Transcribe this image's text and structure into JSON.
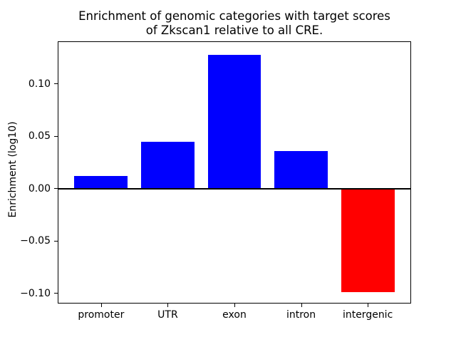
{
  "chart_data": {
    "type": "bar",
    "title": "Enrichment of genomic categories with target scores\nof Zkscan1 relative to all CRE.",
    "xlabel": "",
    "ylabel": "Enrichment (log10)",
    "categories": [
      "promoter",
      "UTR",
      "exon",
      "intron",
      "intergenic"
    ],
    "values": [
      0.012,
      0.045,
      0.128,
      0.036,
      -0.099
    ],
    "bar_colors": [
      "#0000FF",
      "#0000FF",
      "#0000FF",
      "#0000FF",
      "#FF0000"
    ],
    "positive_color": "#0000FF",
    "negative_color": "#FF0000",
    "frame_color": "#000000",
    "zero_line": true,
    "grid": false,
    "legend": null,
    "bar_width": 0.8,
    "xlim": [
      -0.64,
      4.64
    ],
    "ylim": [
      -0.109,
      0.14
    ],
    "yticks": [
      {
        "label": "0.10",
        "value": 0.1
      },
      {
        "label": "0.05",
        "value": 0.05
      },
      {
        "label": "0.00",
        "value": 0.0
      },
      {
        "label": "−0.05",
        "value": -0.05
      },
      {
        "label": "−0.10",
        "value": -0.1
      }
    ]
  }
}
